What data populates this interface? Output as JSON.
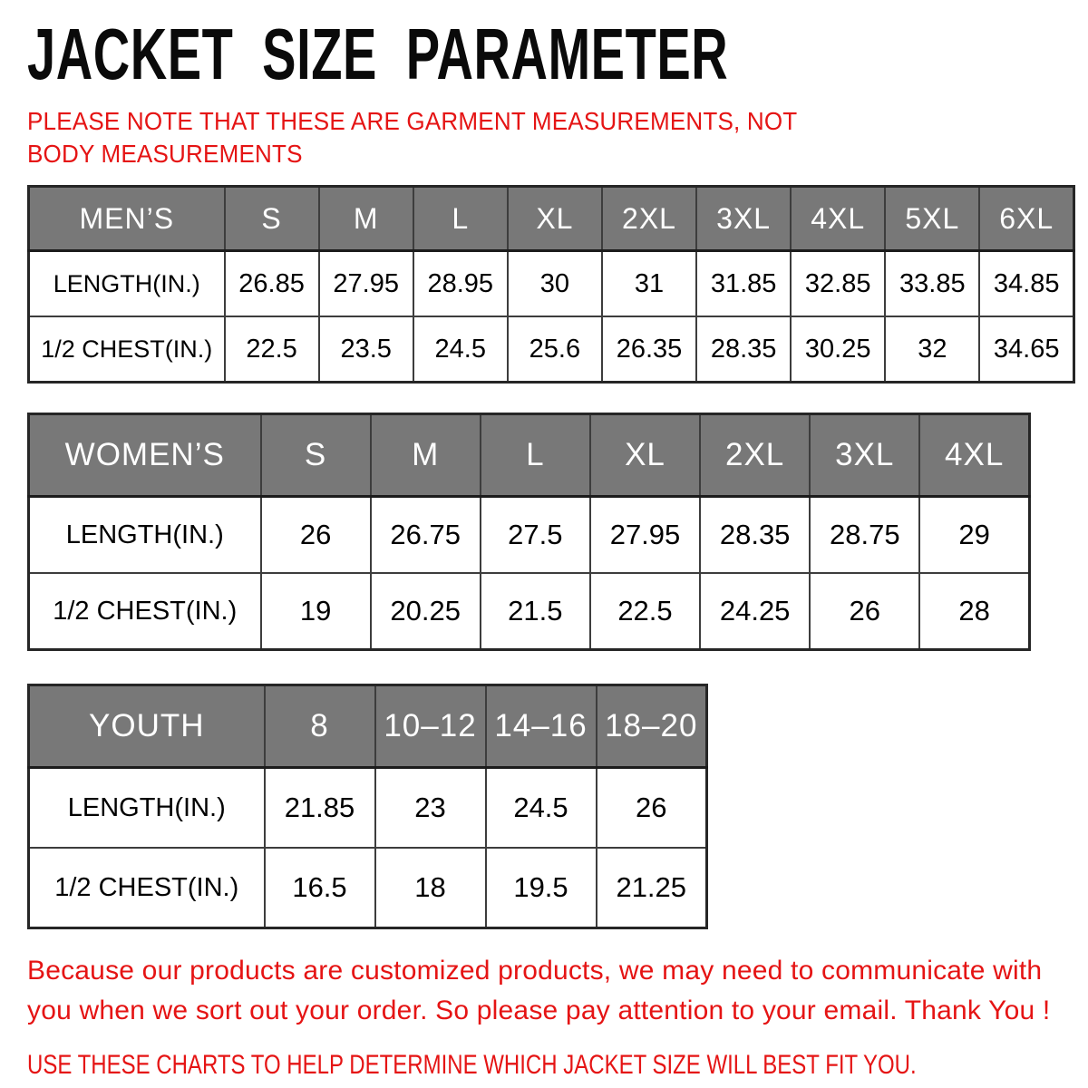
{
  "page": {
    "title": "JACKET SIZE PARAMETER",
    "note": "PLEASE NOTE THAT THESE ARE GARMENT MEASUREMENTS, NOT BODY MEASUREMENTS",
    "footer_line1": "Because our products are customized products, we may need to communicate with you when we sort out your order. So please pay attention to your email. Thank You !",
    "footer_line2": "USE THESE CHARTS TO HELP DETERMINE WHICH JACKET SIZE WILL BEST FIT YOU."
  },
  "colors": {
    "accent_red": "#e51414",
    "header_gray": "#787878",
    "border_dark": "#3d3d3d"
  },
  "tables": [
    {
      "key": "mens",
      "name": "MEN’S",
      "sizes": [
        "S",
        "M",
        "L",
        "XL",
        "2XL",
        "3XL",
        "4XL",
        "5XL",
        "6XL"
      ],
      "rows": [
        {
          "label": "LENGTH(IN.)",
          "values": [
            "26.85",
            "27.95",
            "28.95",
            "30",
            "31",
            "31.85",
            "32.85",
            "33.85",
            "34.85"
          ]
        },
        {
          "label": "1/2 CHEST(IN.)",
          "values": [
            "22.5",
            "23.5",
            "24.5",
            "25.6",
            "26.35",
            "28.35",
            "30.25",
            "32",
            "34.65"
          ]
        }
      ]
    },
    {
      "key": "womens",
      "name": "WOMEN’S",
      "sizes": [
        "S",
        "M",
        "L",
        "XL",
        "2XL",
        "3XL",
        "4XL"
      ],
      "rows": [
        {
          "label": "LENGTH(IN.)",
          "values": [
            "26",
            "26.75",
            "27.5",
            "27.95",
            "28.35",
            "28.75",
            "29"
          ]
        },
        {
          "label": "1/2 CHEST(IN.)",
          "values": [
            "19",
            "20.25",
            "21.5",
            "22.5",
            "24.25",
            "26",
            "28"
          ]
        }
      ]
    },
    {
      "key": "youth",
      "name": "YOUTH",
      "sizes": [
        "8",
        "10–12",
        "14–16",
        "18–20"
      ],
      "rows": [
        {
          "label": "LENGTH(IN.)",
          "values": [
            "21.85",
            "23",
            "24.5",
            "26"
          ]
        },
        {
          "label": "1/2 CHEST(IN.)",
          "values": [
            "16.5",
            "18",
            "19.5",
            "21.25"
          ]
        }
      ]
    }
  ]
}
